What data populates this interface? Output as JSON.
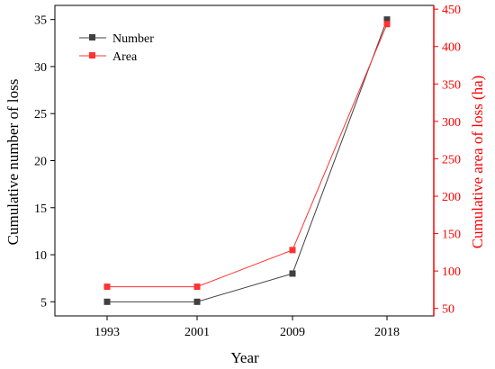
{
  "chart_data": {
    "type": "line",
    "title": "",
    "xlabel": "Year",
    "ylabel": "Cumulative number of loss",
    "y2label": "Cumulative area of loss (ha)",
    "categories": [
      "1993",
      "2001",
      "2009",
      "2018"
    ],
    "ylim": [
      3.5,
      36.5
    ],
    "yticks": [
      5,
      10,
      15,
      20,
      25,
      30,
      35
    ],
    "y2lim": [
      40,
      455
    ],
    "y2ticks": [
      50,
      100,
      150,
      200,
      250,
      300,
      350,
      400,
      450
    ],
    "grid": false,
    "legend": "top-left",
    "series": [
      {
        "name": "Number",
        "axis": "left",
        "color": "#404040",
        "marker": "square",
        "values": [
          5,
          5,
          8,
          35
        ]
      },
      {
        "name": "Area",
        "axis": "right",
        "color": "#ff3333",
        "marker": "square",
        "values": [
          79,
          79,
          128,
          430
        ]
      }
    ],
    "colors": {
      "left_axis": "#000000",
      "right_axis": "#ff0000"
    }
  }
}
